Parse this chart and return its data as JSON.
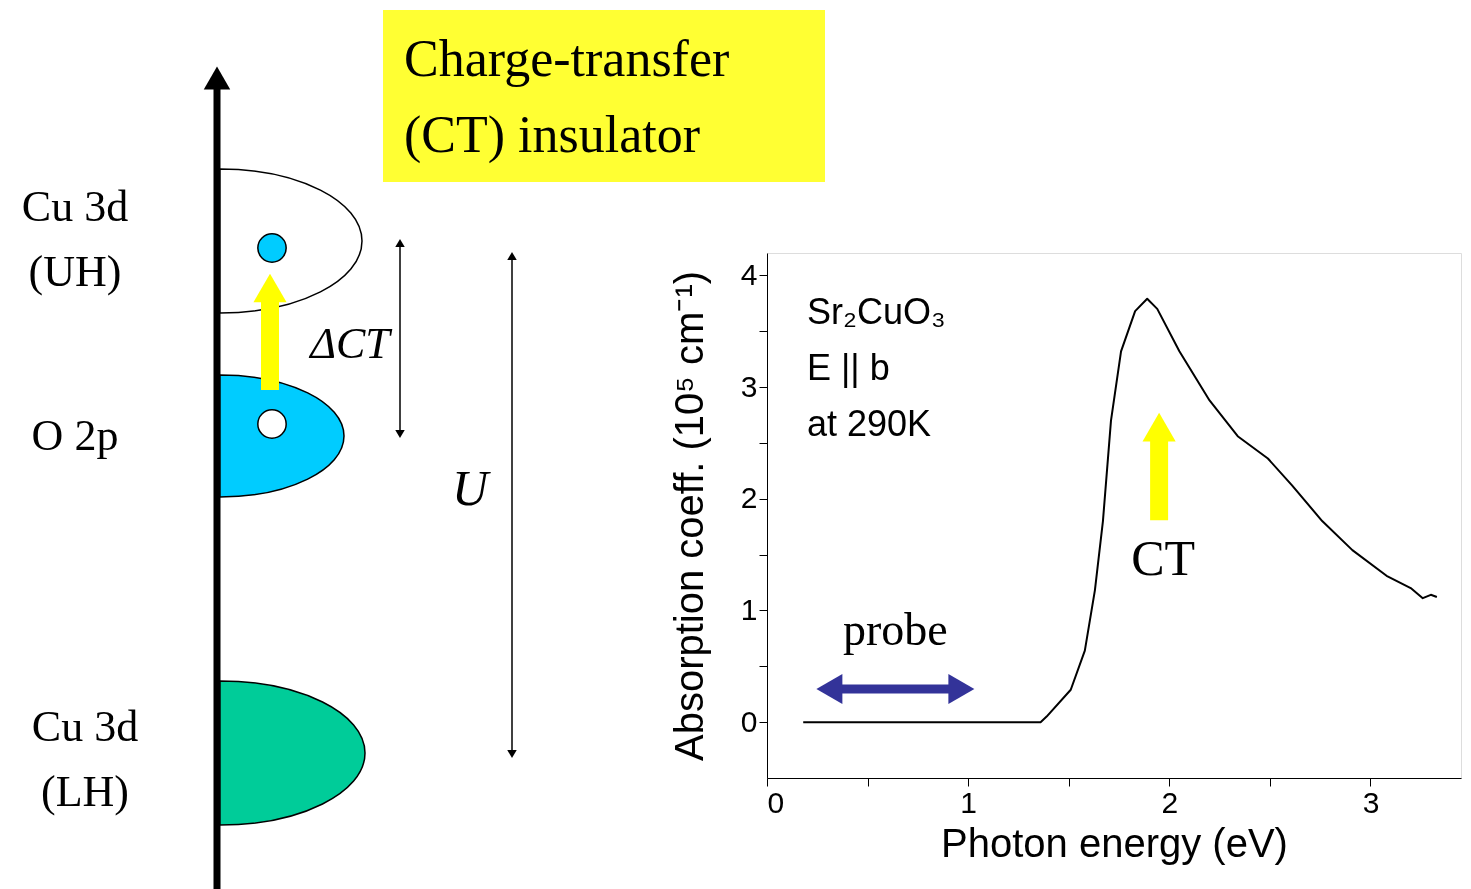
{
  "chart_data": [
    {
      "type": "other",
      "title": "Charge-transfer (CT) insulator",
      "annotations": [
        "Cu 3d (UH)",
        "O 2p",
        "Cu 3d (LH)",
        "ΔCT",
        "U"
      ]
    },
    {
      "type": "line",
      "xlabel": "Photon energy (eV)",
      "ylabel": "Absorption coeff. (10⁵ cm⁻¹)",
      "x": [
        0.18,
        1.36,
        1.39,
        1.51,
        1.58,
        1.63,
        1.67,
        1.71,
        1.76,
        1.83,
        1.89,
        1.94,
        2.05,
        2.2,
        2.34,
        2.49,
        2.61,
        2.76,
        2.91,
        3.08,
        3.2,
        3.26,
        3.3,
        3.33
      ],
      "series": [
        {
          "color": "#000000",
          "values": [
            0,
            0,
            0.05,
            0.29,
            0.64,
            1.18,
            1.8,
            2.7,
            3.32,
            3.68,
            3.79,
            3.7,
            3.32,
            2.88,
            2.56,
            2.36,
            2.12,
            1.8,
            1.54,
            1.31,
            1.2,
            1.11,
            1.14,
            1.12
          ]
        }
      ],
      "xlim": [
        0,
        3.45
      ],
      "ylim": [
        -0.5,
        4.2
      ],
      "xticks": [
        0,
        {
          "value": 0.5,
          "label": null
        },
        1,
        {
          "value": 1.5,
          "label": null
        },
        2,
        {
          "value": 2.5,
          "label": null
        },
        3
      ],
      "yticks": [
        0,
        {
          "value": 0.5,
          "label": null
        },
        1,
        {
          "value": 1.5,
          "label": null
        },
        2,
        {
          "value": 2.5,
          "label": null
        },
        3,
        {
          "value": 3.5,
          "label": null
        },
        4
      ],
      "grid": false,
      "legend": false,
      "marker": "none",
      "line_style": "solid",
      "annotations": [
        "Sr₂CuO₃\nE || b\nat 290K",
        "CT",
        "probe"
      ]
    }
  ]
}
